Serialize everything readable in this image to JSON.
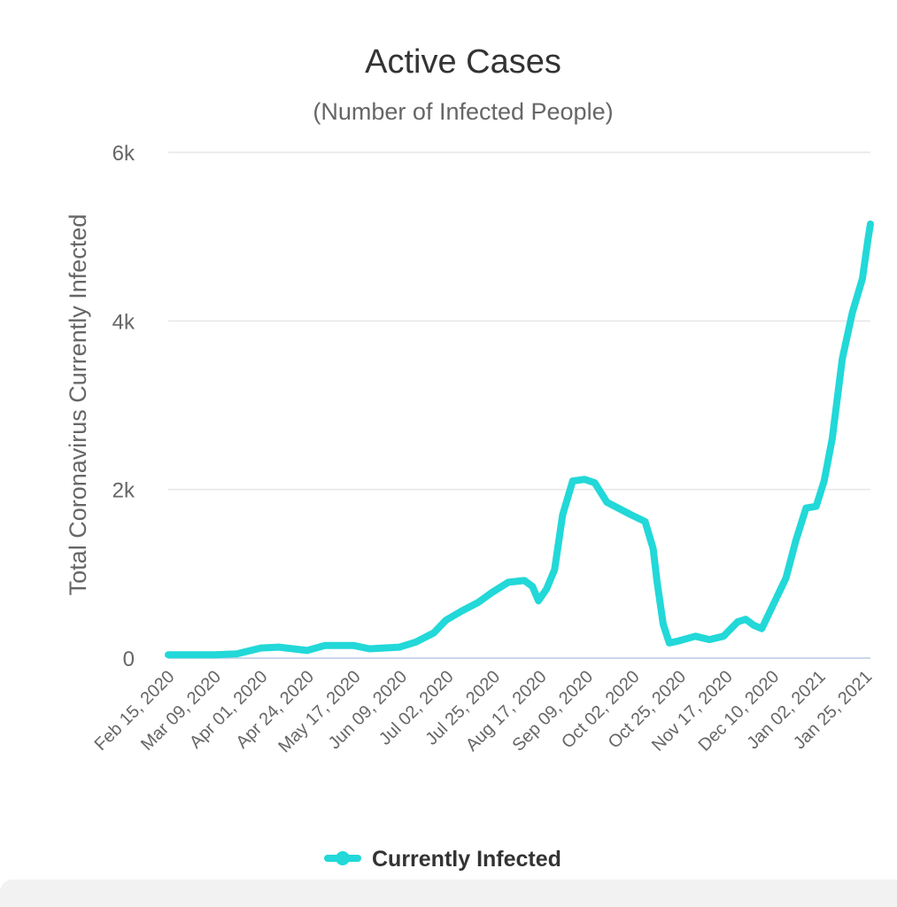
{
  "chart_data": {
    "type": "line",
    "title": "Active Cases",
    "subtitle": "(Number of Infected People)",
    "ylabel": "Total Coronavirus Currently Infected",
    "xlabel": "",
    "ylim": [
      0,
      6000
    ],
    "y_ticks": [
      0,
      2000,
      4000,
      6000
    ],
    "y_tick_labels": [
      "0",
      "2k",
      "4k",
      "6k"
    ],
    "x_tick_labels": [
      "Feb 15, 2020",
      "Mar 09, 2020",
      "Apr 01, 2020",
      "Apr 24, 2020",
      "May 17, 2020",
      "Jun 09, 2020",
      "Jul 02, 2020",
      "Jul 25, 2020",
      "Aug 17, 2020",
      "Sep 09, 2020",
      "Oct 02, 2020",
      "Oct 25, 2020",
      "Nov 17, 2020",
      "Dec 10, 2020",
      "Jan 02, 2021",
      "Jan 25, 2021"
    ],
    "grid": true,
    "legend_position": "bottom-center",
    "series": [
      {
        "name": "Currently Infected",
        "color": "#22d8d8",
        "x": [
          "2020-02-15",
          "2020-03-09",
          "2020-03-20",
          "2020-04-01",
          "2020-04-10",
          "2020-04-24",
          "2020-05-03",
          "2020-05-17",
          "2020-05-25",
          "2020-06-09",
          "2020-06-17",
          "2020-06-26",
          "2020-07-02",
          "2020-07-10",
          "2020-07-18",
          "2020-07-25",
          "2020-08-02",
          "2020-08-10",
          "2020-08-14",
          "2020-08-17",
          "2020-08-21",
          "2020-08-25",
          "2020-08-29",
          "2020-09-03",
          "2020-09-09",
          "2020-09-14",
          "2020-09-20",
          "2020-10-02",
          "2020-10-09",
          "2020-10-13",
          "2020-10-15",
          "2020-10-18",
          "2020-10-21",
          "2020-10-25",
          "2020-11-03",
          "2020-11-10",
          "2020-11-17",
          "2020-11-24",
          "2020-11-28",
          "2020-12-02",
          "2020-12-06",
          "2020-12-10",
          "2020-12-18",
          "2020-12-23",
          "2020-12-28",
          "2021-01-02",
          "2021-01-06",
          "2021-01-10",
          "2021-01-15",
          "2021-01-20",
          "2021-01-25",
          "2021-01-28",
          "2021-01-29"
        ],
        "y": [
          40,
          40,
          50,
          120,
          130,
          90,
          150,
          150,
          110,
          130,
          190,
          300,
          450,
          560,
          660,
          780,
          900,
          920,
          850,
          680,
          820,
          1050,
          1700,
          2100,
          2120,
          2080,
          1850,
          1700,
          1620,
          1300,
          900,
          400,
          180,
          200,
          260,
          220,
          260,
          430,
          460,
          390,
          350,
          550,
          950,
          1400,
          1780,
          1800,
          2100,
          2600,
          3550,
          4100,
          4500,
          5000,
          5150
        ]
      }
    ]
  }
}
